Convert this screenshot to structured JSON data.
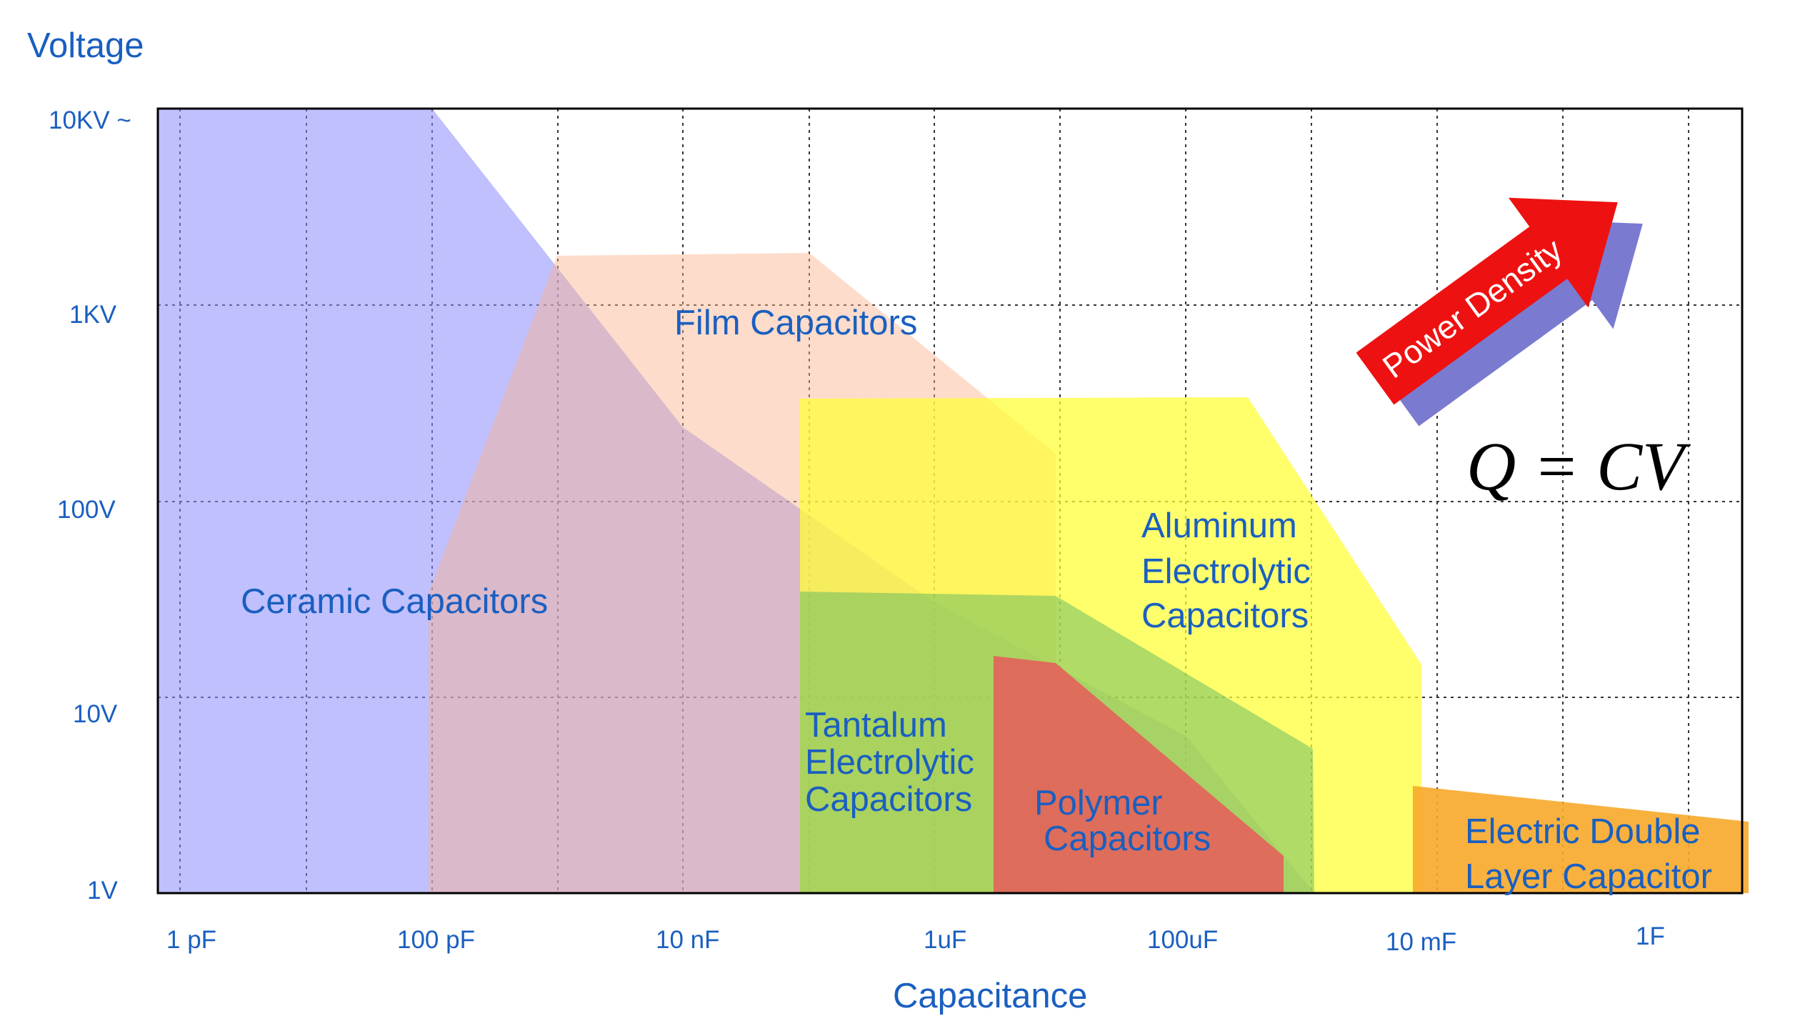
{
  "chart_data": {
    "type": "area",
    "xlabel": "Capacitance",
    "ylabel": "Voltage",
    "x_scale": "log",
    "y_scale": "log",
    "x_ticks": [
      "1 pF",
      "100 pF",
      "10 nF",
      "1uF",
      "100uF",
      "10 mF",
      "1F"
    ],
    "y_ticks": [
      "1V",
      "10V",
      "100V",
      "1KV",
      "10KV ~"
    ],
    "grid": true,
    "formula": "Q = CV",
    "arrow_label": "Power Density",
    "regions": [
      {
        "name": "Ceramic Capacitors",
        "label_lines": [
          "Ceramic Capacitors"
        ],
        "color": "#8c8cff",
        "opacity": 0.55,
        "polygon_data": [
          [
            "1 pF",
            "1V"
          ],
          [
            "1 pF",
            "10KV"
          ],
          [
            "100 pF",
            "10KV"
          ],
          [
            "10 nF",
            "200V"
          ],
          [
            "1 uF",
            "33V"
          ],
          [
            "100 uF",
            "10V"
          ],
          [
            "1 mF",
            "1V"
          ]
        ]
      },
      {
        "name": "Film Capacitors",
        "label_lines": [
          "Film Capacitors"
        ],
        "color": "#fbb28c",
        "opacity": 0.45,
        "polygon_data": [
          [
            "100 pF",
            "1V"
          ],
          [
            "100 pF",
            "15V"
          ],
          [
            "1 nF",
            "1.5KV"
          ],
          [
            "100 nF",
            "1.5KV"
          ],
          [
            "10 uF",
            "250V"
          ],
          [
            "10 uF",
            "1V"
          ]
        ]
      },
      {
        "name": "Aluminum Electrolytic Capacitors",
        "label_lines": [
          "Aluminum",
          "Electrolytic",
          "Capacitors"
        ],
        "color": "#ffff33",
        "opacity": 0.75,
        "polygon_data": [
          [
            "100 nF",
            "1V"
          ],
          [
            "100 nF",
            "450V"
          ],
          [
            "1 mF",
            "450V"
          ],
          [
            "10 mF",
            "16V"
          ],
          [
            "10 mF",
            "1V"
          ]
        ]
      },
      {
        "name": "Tantalum Electrolytic Capacitors",
        "label_lines": [
          "Tantalum",
          "Electrolytic",
          "Capacitors"
        ],
        "color": "#5fb85f",
        "opacity": 0.5,
        "polygon_data": [
          [
            "100 nF",
            "1V"
          ],
          [
            "100 nF",
            "35V"
          ],
          [
            "10 uF",
            "35V"
          ],
          [
            "1 mF",
            "7V"
          ],
          [
            "1 mF",
            "1V"
          ]
        ]
      },
      {
        "name": "Polymer Capacitors",
        "label_lines": [
          "Polymer",
          "Capacitors"
        ],
        "color": "#e85a5a",
        "opacity": 0.85,
        "polygon_data": [
          [
            "3 uF",
            "1V"
          ],
          [
            "3 uF",
            "16V"
          ],
          [
            "10 uF",
            "16V"
          ],
          [
            "700 uF",
            "2V"
          ],
          [
            "700 uF",
            "1V"
          ]
        ]
      },
      {
        "name": "Electric Double Layer Capacitor",
        "label_lines": [
          "Electric Double",
          "Layer Capacitor"
        ],
        "color": "#f7a82a",
        "opacity": 0.9,
        "polygon_data": [
          [
            "10 mF",
            "1V"
          ],
          [
            "10 mF",
            "3V"
          ],
          [
            "10 F",
            "2.7V"
          ],
          [
            "10 F",
            "1V"
          ]
        ]
      }
    ]
  }
}
